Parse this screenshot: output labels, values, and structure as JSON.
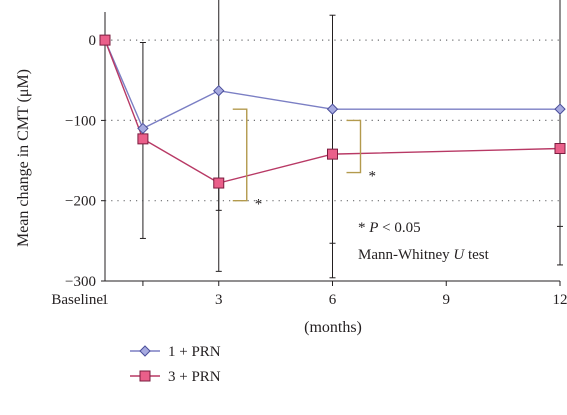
{
  "chart_data": {
    "type": "line",
    "title": "",
    "xlabel": "(months)",
    "ylabel": "Mean change in CMT (μM)",
    "x_tick_labels": [
      {
        "x": 0,
        "label": "Baseline"
      },
      {
        "x": 1,
        "label": "1"
      },
      {
        "x": 3,
        "label": "3"
      },
      {
        "x": 6,
        "label": "6"
      },
      {
        "x": 9,
        "label": "9"
      },
      {
        "x": 12,
        "label": "12"
      }
    ],
    "xlim": [
      0,
      12
    ],
    "y_ticks": [
      0,
      -100,
      -200,
      -300
    ],
    "ylim": [
      -300,
      35
    ],
    "grid": "horizontal dotted",
    "legend_position": "bottom-left",
    "series": [
      {
        "name": "1 + PRN",
        "color": "#7b7fc4",
        "marker": "diamond",
        "points": [
          {
            "x": 0,
            "y": 0
          },
          {
            "x": 1,
            "y": -110,
            "err_low": -247,
            "err_high": -3
          },
          {
            "x": 3,
            "y": -63,
            "err_low": -212,
            "err_high": 63
          },
          {
            "x": 6,
            "y": -86,
            "err_low": -253,
            "err_high": 31
          },
          {
            "x": 12,
            "y": -86,
            "err_low": -232,
            "err_high": 52
          }
        ]
      },
      {
        "name": "3 + PRN",
        "color": "#b83965",
        "marker": "square",
        "points": [
          {
            "x": 0,
            "y": 0
          },
          {
            "x": 1,
            "y": -123
          },
          {
            "x": 3,
            "y": -178,
            "err_low": -288
          },
          {
            "x": 6,
            "y": -142,
            "err_low": -296
          },
          {
            "x": 12,
            "y": -135,
            "err_low": -280
          }
        ]
      }
    ],
    "significance_brackets": [
      {
        "x": 3,
        "y_from": -86,
        "y_to": -200,
        "label": "*"
      },
      {
        "x": 6,
        "y_from": -100,
        "y_to": -165,
        "label": "*"
      }
    ],
    "annotation_lines": [
      "* P < 0.05",
      "Mann-Whitney U test"
    ]
  }
}
